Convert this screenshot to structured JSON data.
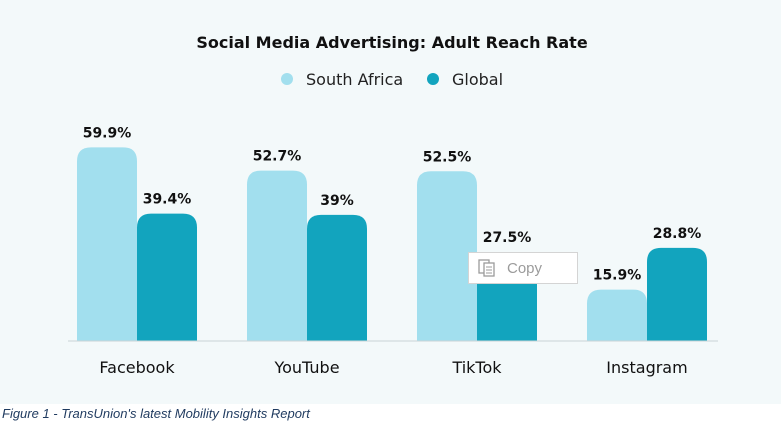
{
  "chart_data": {
    "type": "bar",
    "title": "Social Media Advertising: Adult Reach Rate",
    "categories": [
      "Facebook",
      "YouTube",
      "TikTok",
      "Instagram"
    ],
    "series": [
      {
        "name": "South Africa",
        "color": "#a2dfee",
        "values": [
          59.9,
          52.7,
          52.5,
          15.9
        ],
        "labels": [
          "59.9%",
          "52.7%",
          "52.5%",
          "15.9%"
        ]
      },
      {
        "name": "Global",
        "color": "#12a4be",
        "values": [
          39.4,
          39,
          27.5,
          28.8
        ],
        "labels": [
          "39.4%",
          "39%",
          "27.5%",
          "28.8%"
        ]
      }
    ],
    "ylim": [
      0,
      60
    ],
    "grid": false,
    "legend_position": "top-center"
  },
  "caption": "Figure 1 - TransUnion's latest Mobility Insights Report",
  "copy_popup": {
    "label": "Copy",
    "icon": "copy-icon"
  }
}
